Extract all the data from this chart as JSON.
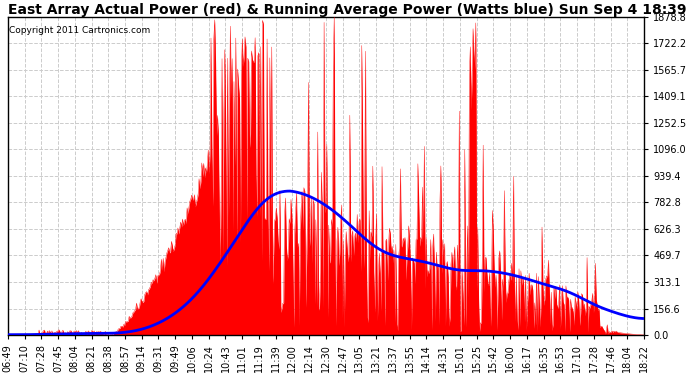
{
  "title": "East Array Actual Power (red) & Running Average Power (Watts blue) Sun Sep 4 18:39",
  "copyright": "Copyright 2011 Cartronics.com",
  "yticks": [
    0.0,
    156.6,
    313.1,
    469.7,
    626.3,
    782.8,
    939.4,
    1096.0,
    1252.5,
    1409.1,
    1565.7,
    1722.2,
    1878.8
  ],
  "ymax": 1878.8,
  "ymin": 0.0,
  "xtick_labels": [
    "06:49",
    "07:10",
    "07:28",
    "07:45",
    "08:04",
    "08:21",
    "08:38",
    "08:57",
    "09:14",
    "09:31",
    "09:49",
    "10:06",
    "10:24",
    "10:43",
    "11:01",
    "11:19",
    "11:39",
    "12:00",
    "12:14",
    "12:30",
    "12:47",
    "13:05",
    "13:21",
    "13:37",
    "13:55",
    "14:14",
    "14:31",
    "15:01",
    "15:25",
    "15:42",
    "16:00",
    "16:17",
    "16:35",
    "16:53",
    "17:10",
    "17:28",
    "17:46",
    "18:04",
    "18:22"
  ],
  "background_color": "#ffffff",
  "plot_bg_color": "#ffffff",
  "grid_color": "#cccccc",
  "actual_color": "#ff0000",
  "avg_color": "#0000ff",
  "title_fontsize": 10,
  "tick_fontsize": 7,
  "figwidth": 6.9,
  "figheight": 3.75,
  "dpi": 100
}
